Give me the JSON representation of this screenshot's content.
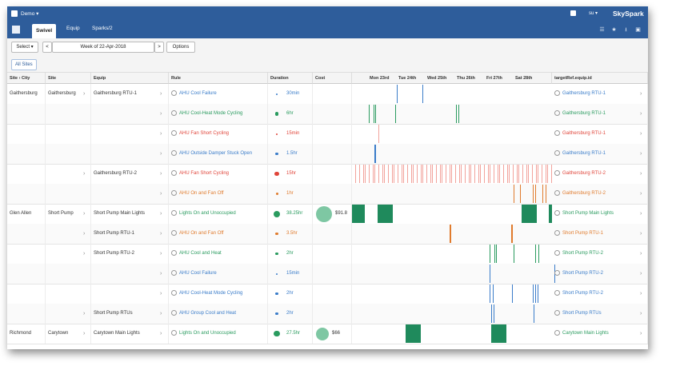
{
  "topbar": {
    "project": "Demo",
    "user": "su",
    "brand": "SkySpark"
  },
  "tabs": [
    {
      "label": "Swivel"
    },
    {
      "label": "Equip"
    },
    {
      "label": "Sparks/2"
    }
  ],
  "toolbar": {
    "select_label": "Select ▾",
    "prev": "<",
    "week": "Week of 22-Apr-2018",
    "next": ">",
    "options": "Options"
  },
  "site_filter": "All Sites",
  "columns": [
    "Site › City",
    "Site",
    "Equip",
    "Rule",
    "Duration",
    "Cost",
    "",
    "targetRef.equip.id"
  ],
  "days": [
    "Mon 23rd",
    "Tue 24th",
    "Wed 25th",
    "Thu 26th",
    "Fri 27th",
    "Sat 28th"
  ],
  "colors": {
    "green": "#2a9b5f",
    "red": "#e0453a",
    "blue": "#3a7cc9",
    "orange": "#e07b2d",
    "header": "#2e5d9b"
  },
  "rows": [
    {
      "city": "Gaithersburg",
      "site": "Gaithersburg",
      "equip": "Gaithersburg RTU-1",
      "rule": "AHU Cool Failure",
      "color": "blue",
      "duration": "30min",
      "cost": "",
      "target": "Gaithersburg RTU-1"
    },
    {
      "city": "",
      "site": "",
      "equip": "",
      "rule": "AHU Cool-Heat Mode Cycling",
      "color": "green",
      "duration": "6hr",
      "cost": "",
      "target": "Gaithersburg RTU-1"
    },
    {
      "city": "",
      "site": "",
      "equip": "",
      "rule": "AHU Fan Short Cycling",
      "color": "red",
      "duration": "15min",
      "cost": "",
      "target": "Gaithersburg RTU-1"
    },
    {
      "city": "",
      "site": "",
      "equip": "",
      "rule": "AHU Outside Damper Stuck Open",
      "color": "blue",
      "duration": "1.5hr",
      "cost": "",
      "target": "Gaithersburg RTU-1"
    },
    {
      "city": "",
      "site": "",
      "equip": "Gaithersburg RTU-2",
      "rule": "AHU Fan Short Cycling",
      "color": "red",
      "duration": "15hr",
      "cost": "",
      "target": "Gaithersburg RTU-2"
    },
    {
      "city": "",
      "site": "",
      "equip": "",
      "rule": "AHU On and Fan Off",
      "color": "orange",
      "duration": "1hr",
      "cost": "",
      "target": "Gaithersburg RTU-2"
    },
    {
      "city": "Glen Allen",
      "site": "Short Pump",
      "equip": "Short Pump Main Lights",
      "rule": "Lights On and Unoccupied",
      "color": "green",
      "duration": "38.25hr",
      "cost": "$91.8",
      "target": "Short Pump Main Lights"
    },
    {
      "city": "",
      "site": "",
      "equip": "Short Pump RTU-1",
      "rule": "AHU On and Fan Off",
      "color": "orange",
      "duration": "3.5hr",
      "cost": "",
      "target": "Short Pump RTU-1"
    },
    {
      "city": "",
      "site": "",
      "equip": "Short Pump RTU-2",
      "rule": "AHU Cool and Heat",
      "color": "green",
      "duration": "2hr",
      "cost": "",
      "target": "Short Pump RTU-2"
    },
    {
      "city": "",
      "site": "",
      "equip": "",
      "rule": "AHU Cool Failure",
      "color": "blue",
      "duration": "15min",
      "cost": "",
      "target": "Short Pump RTU-2"
    },
    {
      "city": "",
      "site": "",
      "equip": "",
      "rule": "AHU Cool-Heat Mode Cycling",
      "color": "blue",
      "duration": "2hr",
      "cost": "",
      "target": "Short Pump RTU-2"
    },
    {
      "city": "",
      "site": "",
      "equip": "Short Pump RTUs",
      "rule": "AHU Group Cool and Heat",
      "color": "blue",
      "duration": "2hr",
      "cost": "",
      "target": "Short Pump RTUs"
    },
    {
      "city": "Richmond",
      "site": "Carytown",
      "equip": "Carytown Main Lights",
      "rule": "Lights On and Unoccupied",
      "color": "green",
      "duration": "27.5hr",
      "cost": "$66",
      "target": "Carytown Main Lights"
    }
  ]
}
